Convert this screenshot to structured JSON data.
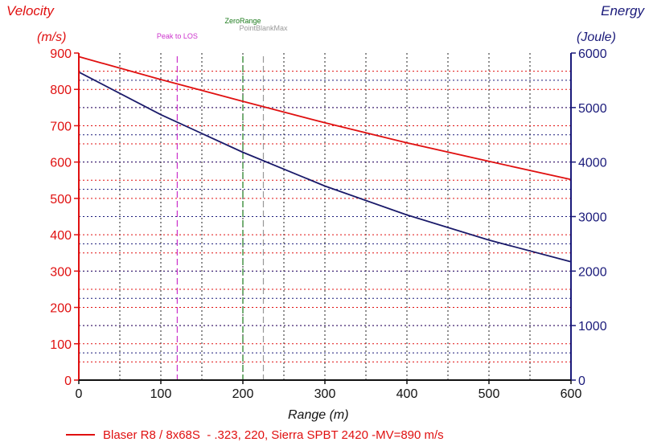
{
  "chart_data": {
    "type": "line",
    "xlabel": "Range (m)",
    "ylabel_left": "Velocity",
    "ylabel_left_unit": "(m/s)",
    "ylabel_right": "Energy",
    "ylabel_right_unit": "(Joule)",
    "xlim": [
      0,
      600
    ],
    "ylim_left": [
      0,
      900
    ],
    "ylim_right": [
      0,
      6000
    ],
    "xticks": [
      "0",
      "100",
      "200",
      "300",
      "400",
      "500",
      "600"
    ],
    "yticks_left": [
      "0",
      "100",
      "200",
      "300",
      "400",
      "500",
      "600",
      "700",
      "800",
      "900"
    ],
    "yticks_right": [
      "0",
      "1000",
      "2000",
      "3000",
      "4000",
      "5000",
      "6000"
    ],
    "grid": true,
    "legend_position": "bottom",
    "markers": [
      {
        "label": "Peak to LOS",
        "x": 120,
        "color": "#cc33cc"
      },
      {
        "label": "ZeroRange",
        "x": 200,
        "color": "#1a7a1a"
      },
      {
        "label": "PointBlankMax",
        "x": 225,
        "color": "#999999"
      }
    ],
    "series": [
      {
        "name": "Blaser R8 / 8x68S  - .323, 220, Sierra SPBT 2420 -MV=890 m/s",
        "axis": "left",
        "color": "#e01010",
        "x": [
          0,
          100,
          200,
          300,
          400,
          500,
          600
        ],
        "values": [
          890,
          827,
          767,
          708,
          653,
          602,
          552
        ]
      },
      {
        "name": "",
        "axis": "right",
        "color": "#1a1a6a",
        "x": [
          0,
          100,
          200,
          300,
          400,
          500,
          600
        ],
        "values": [
          5650,
          4870,
          4180,
          3560,
          3030,
          2570,
          2170
        ]
      }
    ]
  }
}
